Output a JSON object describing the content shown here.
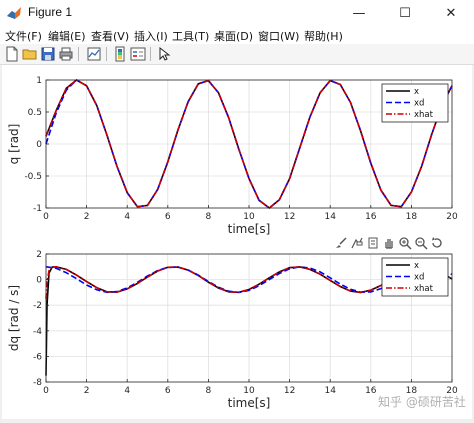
{
  "window": {
    "title": "Figure 1",
    "minimize_glyph": "—",
    "maximize_glyph": "☐",
    "close_glyph": "✕"
  },
  "menu": [
    "文件(F)",
    "编辑(E)",
    "查看(V)",
    "插入(I)",
    "工具(T)",
    "桌面(D)",
    "窗口(W)",
    "帮助(H)"
  ],
  "toolbar": {
    "buttons": [
      "new-figure-icon",
      "open-file-icon",
      "save-icon",
      "print-icon",
      "link-plot-icon",
      "insert-colorbar-icon",
      "insert-legend-icon",
      "pointer-icon"
    ]
  },
  "axes_toolbar": {
    "buttons": [
      "brush-icon",
      "data-tips-icon",
      "rotate-3d-icon",
      "pan-icon",
      "zoom-in-icon",
      "zoom-out-icon",
      "restore-view-icon"
    ]
  },
  "watermark": "知乎 @硕研苦社",
  "colors": {
    "x": "#000000",
    "xd": "#0000ff",
    "xhat": "#cc0000",
    "grid": "#e0e0e0"
  },
  "chart_data": [
    {
      "type": "line",
      "title": "",
      "xlabel": "time[s]",
      "ylabel": "q [rad]",
      "xlim": [
        0,
        20
      ],
      "ylim": [
        -1,
        1
      ],
      "xticks": [
        0,
        2,
        4,
        6,
        8,
        10,
        12,
        14,
        16,
        18,
        20
      ],
      "yticks": [
        -1,
        -0.5,
        0,
        0.5,
        1
      ],
      "xtick_labels": [
        "0",
        "2",
        "4",
        "6",
        "8",
        "10",
        "12",
        "14",
        "16",
        "18",
        "20"
      ],
      "ytick_labels": [
        "-1",
        "-0.5",
        "0",
        "0.5",
        "1"
      ],
      "grid": true,
      "legend_position": "top-right",
      "series": [
        {
          "name": "x",
          "style": "solid",
          "x": [
            0,
            0.5,
            1,
            1.5,
            2,
            2.5,
            3,
            3.5,
            4,
            4.5,
            5,
            5.5,
            6,
            6.5,
            7,
            7.5,
            8,
            8.5,
            9,
            9.5,
            10,
            10.5,
            11,
            11.5,
            12,
            12.5,
            13,
            13.5,
            14,
            14.5,
            15,
            15.5,
            16,
            16.5,
            17,
            17.5,
            18,
            18.5,
            19,
            19.5,
            20
          ],
          "values": [
            0.12,
            0.52,
            0.87,
            1.0,
            0.91,
            0.6,
            0.14,
            -0.35,
            -0.76,
            -0.98,
            -0.96,
            -0.71,
            -0.28,
            0.22,
            0.66,
            0.94,
            0.99,
            0.8,
            0.41,
            -0.08,
            -0.54,
            -0.88,
            -1.0,
            -0.87,
            -0.54,
            -0.06,
            0.42,
            0.8,
            0.99,
            0.93,
            0.65,
            0.2,
            -0.3,
            -0.72,
            -0.96,
            -0.98,
            -0.75,
            -0.35,
            0.15,
            0.6,
            0.91
          ]
        },
        {
          "name": "xd",
          "style": "dashed",
          "x": [
            0,
            0.5,
            1,
            1.5,
            2,
            2.5,
            3,
            3.5,
            4,
            4.5,
            5,
            5.5,
            6,
            6.5,
            7,
            7.5,
            8,
            8.5,
            9,
            9.5,
            10,
            10.5,
            11,
            11.5,
            12,
            12.5,
            13,
            13.5,
            14,
            14.5,
            15,
            15.5,
            16,
            16.5,
            17,
            17.5,
            18,
            18.5,
            19,
            19.5,
            20
          ],
          "values": [
            0.0,
            0.48,
            0.84,
            1.0,
            0.91,
            0.6,
            0.14,
            -0.35,
            -0.76,
            -0.98,
            -0.96,
            -0.71,
            -0.28,
            0.22,
            0.66,
            0.94,
            0.99,
            0.8,
            0.41,
            -0.08,
            -0.54,
            -0.88,
            -1.0,
            -0.87,
            -0.54,
            -0.06,
            0.42,
            0.8,
            0.99,
            0.93,
            0.65,
            0.2,
            -0.3,
            -0.72,
            -0.96,
            -0.98,
            -0.75,
            -0.35,
            0.15,
            0.6,
            0.91
          ]
        },
        {
          "name": "xhat",
          "style": "dashdot",
          "x": [
            0,
            0.5,
            1,
            1.5,
            2,
            2.5,
            3,
            3.5,
            4,
            4.5,
            5,
            5.5,
            6,
            6.5,
            7,
            7.5,
            8,
            8.5,
            9,
            9.5,
            10,
            10.5,
            11,
            11.5,
            12,
            12.5,
            13,
            13.5,
            14,
            14.5,
            15,
            15.5,
            16,
            16.5,
            17,
            17.5,
            18,
            18.5,
            19,
            19.5,
            20
          ],
          "values": [
            0.12,
            0.52,
            0.87,
            1.0,
            0.91,
            0.6,
            0.14,
            -0.35,
            -0.76,
            -0.98,
            -0.96,
            -0.71,
            -0.28,
            0.22,
            0.66,
            0.94,
            0.99,
            0.8,
            0.41,
            -0.08,
            -0.54,
            -0.88,
            -1.0,
            -0.87,
            -0.54,
            -0.06,
            0.42,
            0.8,
            0.99,
            0.93,
            0.65,
            0.2,
            -0.3,
            -0.72,
            -0.96,
            -0.98,
            -0.75,
            -0.35,
            0.15,
            0.6,
            0.91
          ]
        }
      ]
    },
    {
      "type": "line",
      "title": "",
      "xlabel": "time[s]",
      "ylabel": "dq [rad / s]",
      "xlim": [
        0,
        20
      ],
      "ylim": [
        -8,
        2
      ],
      "xticks": [
        0,
        2,
        4,
        6,
        8,
        10,
        12,
        14,
        16,
        18,
        20
      ],
      "yticks": [
        -8,
        -6,
        -4,
        -2,
        0,
        2
      ],
      "xtick_labels": [
        "0",
        "2",
        "4",
        "6",
        "8",
        "10",
        "12",
        "14",
        "16",
        "18",
        "20"
      ],
      "ytick_labels": [
        "-8",
        "-6",
        "-4",
        "-2",
        "0",
        "2"
      ],
      "grid": true,
      "legend_position": "top-right",
      "series": [
        {
          "name": "x",
          "style": "solid",
          "x": [
            0,
            0.05,
            0.15,
            0.3,
            0.5,
            1,
            1.5,
            2,
            2.5,
            3,
            3.5,
            4,
            4.5,
            5,
            5.5,
            6,
            6.5,
            7,
            7.5,
            8,
            8.5,
            9,
            9.5,
            10,
            10.5,
            11,
            11.5,
            12,
            12.5,
            13,
            13.5,
            14,
            14.5,
            15,
            15.5,
            16,
            16.5,
            17,
            17.5,
            18,
            18.5,
            19,
            19.5,
            20
          ],
          "values": [
            -7.5,
            -2.0,
            0.5,
            0.98,
            1.0,
            0.8,
            0.35,
            -0.16,
            -0.63,
            -0.95,
            -0.98,
            -0.73,
            -0.3,
            0.2,
            0.67,
            0.96,
            0.98,
            0.74,
            0.32,
            -0.2,
            -0.66,
            -0.95,
            -0.99,
            -0.77,
            -0.36,
            0.14,
            0.6,
            0.93,
            0.99,
            0.8,
            0.42,
            -0.06,
            -0.54,
            -0.9,
            -1.0,
            -0.82,
            -0.46,
            0.02,
            0.5,
            0.86,
            1.0,
            0.87,
            0.52,
            0.05
          ]
        },
        {
          "name": "xd",
          "style": "dashed",
          "x": [
            0,
            0.5,
            1,
            1.5,
            2,
            2.5,
            3,
            3.5,
            4,
            4.5,
            5,
            5.5,
            6,
            6.5,
            7,
            7.5,
            8,
            8.5,
            9,
            9.5,
            10,
            10.5,
            11,
            11.5,
            12,
            12.5,
            13,
            13.5,
            14,
            14.5,
            15,
            15.5,
            16,
            16.5,
            17,
            17.5,
            18,
            18.5,
            19,
            19.5,
            20
          ],
          "values": [
            1.0,
            0.88,
            0.54,
            0.07,
            -0.42,
            -0.8,
            -0.99,
            -0.94,
            -0.65,
            -0.21,
            0.28,
            0.71,
            0.96,
            0.98,
            0.75,
            0.35,
            -0.15,
            -0.6,
            -0.91,
            -1.0,
            -0.84,
            -0.48,
            0.0,
            0.48,
            0.84,
            1.0,
            0.91,
            0.6,
            0.14,
            -0.35,
            -0.76,
            -0.98,
            -0.96,
            -0.7,
            -0.27,
            0.22,
            0.66,
            0.95,
            0.99,
            0.79,
            0.41
          ]
        },
        {
          "name": "xhat",
          "style": "dashdot",
          "x": [
            0,
            0.05,
            0.15,
            0.3,
            0.5,
            1,
            1.5,
            2,
            2.5,
            3,
            3.5,
            4,
            4.5,
            5,
            5.5,
            6,
            6.5,
            7,
            7.5,
            8,
            8.5,
            9,
            9.5,
            10,
            10.5,
            11,
            11.5,
            12,
            12.5,
            13,
            13.5,
            14,
            14.5,
            15,
            15.5,
            16,
            16.5,
            17,
            17.5,
            18,
            18.5,
            19,
            19.5,
            20
          ],
          "values": [
            -1.5,
            -0.2,
            0.7,
            1.0,
            1.0,
            0.8,
            0.35,
            -0.16,
            -0.63,
            -0.95,
            -0.98,
            -0.73,
            -0.3,
            0.2,
            0.67,
            0.96,
            0.98,
            0.74,
            0.32,
            -0.2,
            -0.66,
            -0.95,
            -0.99,
            -0.77,
            -0.36,
            0.14,
            0.6,
            0.93,
            0.99,
            0.8,
            0.42,
            -0.06,
            -0.54,
            -0.9,
            -1.0,
            -0.82,
            -0.46,
            0.02,
            0.5,
            0.86,
            1.0,
            0.87,
            0.52,
            0.05
          ]
        }
      ]
    }
  ]
}
